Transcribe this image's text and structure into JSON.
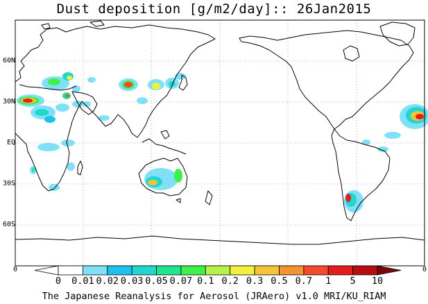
{
  "title": "Dust deposition [g/m2/day]:: 26Jan2015",
  "credit": "The Japanese Reanalysis for Aerosol (JRAero) v1.0 MRI/KU_RIAM",
  "map": {
    "projection": "equirectangular, centered on 180 (Pacific-centered)",
    "lat_labels": [
      "60N",
      "30N",
      "EQ",
      "30S",
      "60S"
    ],
    "corner_labels": {
      "left": "0",
      "right": "0"
    },
    "grid": "dotted, every 30 degrees",
    "coastline_color": "#000000"
  },
  "colorbar": {
    "labels": [
      "0",
      "0.01",
      "0.02",
      "0.03",
      "0.05",
      "0.07",
      "0.1",
      "0.2",
      "0.3",
      "0.5",
      "0.7",
      "1",
      "5",
      "10"
    ],
    "colors": [
      "#ffffff",
      "#ffffff",
      "#7fe0f7",
      "#1ec0ef",
      "#1fd7cc",
      "#1fe58f",
      "#3fef4a",
      "#b7f24a",
      "#f2ef3f",
      "#f7c13a",
      "#f59333",
      "#f54a2e",
      "#e41d1d",
      "#b70f0f",
      "#7a0808"
    ]
  }
}
